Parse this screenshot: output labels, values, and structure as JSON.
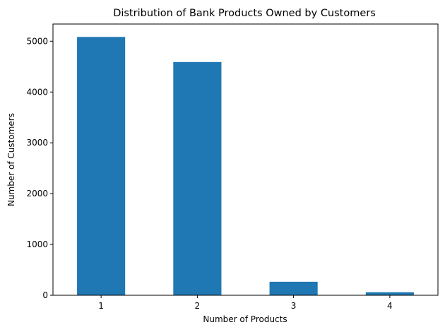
{
  "chart_data": {
    "type": "bar",
    "title": "Distribution of Bank Products Owned by Customers",
    "xlabel": "Number of Products",
    "ylabel": "Number of Customers",
    "categories": [
      "1",
      "2",
      "3",
      "4"
    ],
    "values": [
      5084,
      4590,
      266,
      60
    ],
    "ylim": [
      0,
      5338
    ],
    "yticks": [
      0,
      1000,
      2000,
      3000,
      4000,
      5000
    ],
    "grid": false,
    "legend": "none",
    "bar_color": "#1f77b4"
  }
}
